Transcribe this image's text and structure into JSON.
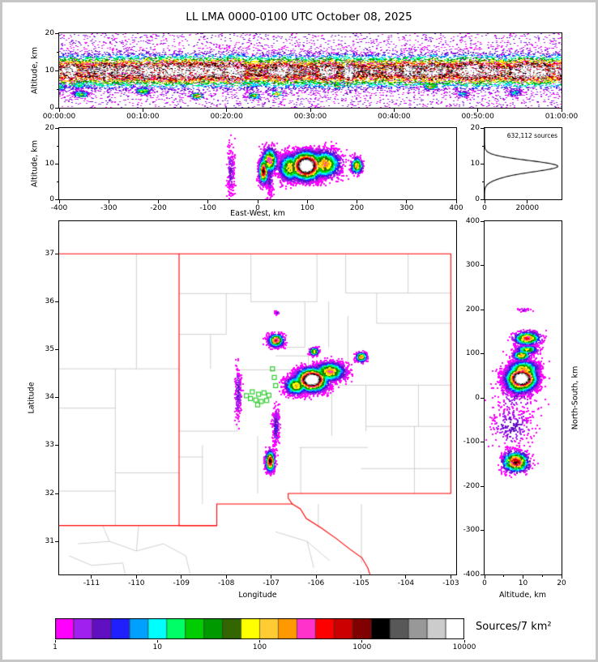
{
  "title": "LL LMA 0000-0100 UTC October 08, 2025",
  "chart_data": [
    {
      "id": "time-height",
      "type": "heatmap",
      "ylabel": "Altitude, km",
      "ylim": [
        0,
        20
      ],
      "yticks": [
        0,
        10,
        20
      ],
      "xticklabels": [
        "00:00:00",
        "00:10:00",
        "00:20:00",
        "00:30:00",
        "00:40:00",
        "00:50:00",
        "01:00:00"
      ],
      "band_alt": 9.8,
      "band_sd": 2.4,
      "band_n": 18000,
      "noise_n": 4000,
      "low_blobs": 14
    },
    {
      "id": "east-west-altitude",
      "type": "heatmap",
      "xlabel": "East-West, km",
      "ylabel": "Altitude, km",
      "xlim": [
        -400,
        400
      ],
      "xticks": [
        -400,
        -300,
        -200,
        -100,
        0,
        100,
        200,
        300,
        400
      ],
      "ylim": [
        0,
        20
      ],
      "yticks": [
        0,
        10,
        20
      ]
    },
    {
      "id": "altitude-histogram",
      "type": "line",
      "annotation": "632,112 sources",
      "xlim": [
        0,
        36000
      ],
      "xticks": [
        0,
        20000
      ],
      "ylim": [
        0,
        20
      ],
      "yticks": [
        0,
        10,
        20
      ],
      "peaks": [
        {
          "alt": 9.3,
          "sd": 1.6,
          "count": 34000
        },
        {
          "alt": 6.2,
          "sd": 1.3,
          "count": 4000
        }
      ]
    },
    {
      "id": "plan-view-map",
      "type": "scatter",
      "xlabel": "Longitude",
      "ylabel": "Latitude",
      "xlim": [
        -111.72,
        -102.88
      ],
      "xticks": [
        -111,
        -110,
        -109,
        -108,
        -107,
        -106,
        -105,
        -104,
        -103
      ],
      "ylim": [
        30.31,
        37.68
      ],
      "yticks": [
        31,
        32,
        33,
        34,
        35,
        36,
        37
      ],
      "border_color": "#ff0000",
      "county_color": "#bcbcbc",
      "station_color": "#2ecc2e",
      "center_lon": -107.15,
      "center_lat": 33.98,
      "clusters": [
        {
          "lon": -106.1,
          "lat": 34.38,
          "slon": 0.18,
          "slat": 0.12,
          "alt": 9.5,
          "salt": 2.0,
          "n": 5200,
          "peak": 1.0
        },
        {
          "lon": -105.7,
          "lat": 34.55,
          "slon": 0.18,
          "slat": 0.1,
          "alt": 10.0,
          "salt": 2.0,
          "n": 1600,
          "peak": 0.5
        },
        {
          "lon": -106.45,
          "lat": 34.26,
          "slon": 0.13,
          "slat": 0.1,
          "alt": 9.0,
          "salt": 2.0,
          "n": 1200,
          "peak": 0.45
        },
        {
          "lon": -106.9,
          "lat": 35.2,
          "slon": 0.09,
          "slat": 0.07,
          "alt": 11.0,
          "salt": 1.8,
          "n": 750,
          "peak": 0.55
        },
        {
          "lon": -106.05,
          "lat": 34.97,
          "slon": 0.05,
          "slat": 0.04,
          "alt": 11.0,
          "salt": 1.5,
          "n": 380,
          "peak": 0.4
        },
        {
          "lon": -105.0,
          "lat": 34.85,
          "slon": 0.065,
          "slat": 0.05,
          "alt": 9.5,
          "salt": 1.2,
          "n": 380,
          "peak": 0.48
        },
        {
          "lon": -107.03,
          "lat": 32.68,
          "slon": 0.05,
          "slat": 0.11,
          "alt": 8.0,
          "salt": 1.8,
          "n": 950,
          "peak": 0.65
        },
        {
          "lon": -106.9,
          "lat": 33.4,
          "slon": 0.04,
          "slat": 0.22,
          "alt": 7.0,
          "salt": 3.0,
          "n": 260,
          "peak": 0.12
        },
        {
          "lon": -107.74,
          "lat": 34.1,
          "slon": 0.04,
          "slat": 0.3,
          "alt": 8.0,
          "salt": 3.5,
          "n": 190,
          "peak": 0.1
        },
        {
          "lon": -106.88,
          "lat": 35.78,
          "slon": 0.02,
          "slat": 0.02,
          "alt": 10.0,
          "salt": 1.0,
          "n": 30,
          "peak": 0.08
        }
      ],
      "stations": [
        [
          -106.97,
          34.6
        ],
        [
          -106.93,
          34.42
        ],
        [
          -106.9,
          34.25
        ],
        [
          -107.42,
          34.12
        ],
        [
          -107.28,
          34.07
        ],
        [
          -107.16,
          34.1
        ],
        [
          -107.05,
          34.05
        ],
        [
          -107.46,
          33.98
        ],
        [
          -107.34,
          33.95
        ],
        [
          -107.22,
          33.92
        ],
        [
          -107.1,
          33.94
        ],
        [
          -107.3,
          33.85
        ],
        [
          -107.55,
          34.04
        ]
      ]
    },
    {
      "id": "north-south-altitude",
      "type": "heatmap",
      "xlabel": "Altitude, km",
      "ylabel": "North-South, km",
      "xlim": [
        0,
        20
      ],
      "xticks": [
        0,
        10,
        20
      ],
      "ylim": [
        -400,
        400
      ],
      "yticks": [
        400,
        300,
        200,
        100,
        0,
        -100,
        -200,
        -300,
        -400
      ]
    }
  ],
  "colorbar": {
    "label": "Sources/7 km²",
    "ticks": [
      "1",
      "10",
      "100",
      "1000",
      "10000"
    ],
    "colors": [
      "#ff00ff",
      "#a020f0",
      "#6010c0",
      "#2020ff",
      "#00a0ff",
      "#00ffff",
      "#00ff66",
      "#00cc00",
      "#009900",
      "#336600",
      "#ffff00",
      "#ffcc33",
      "#ff9900",
      "#ff33cc",
      "#ff0000",
      "#cc0000",
      "#800000",
      "#000000",
      "#585858",
      "#989898",
      "#cccccc",
      "#ffffff"
    ]
  }
}
